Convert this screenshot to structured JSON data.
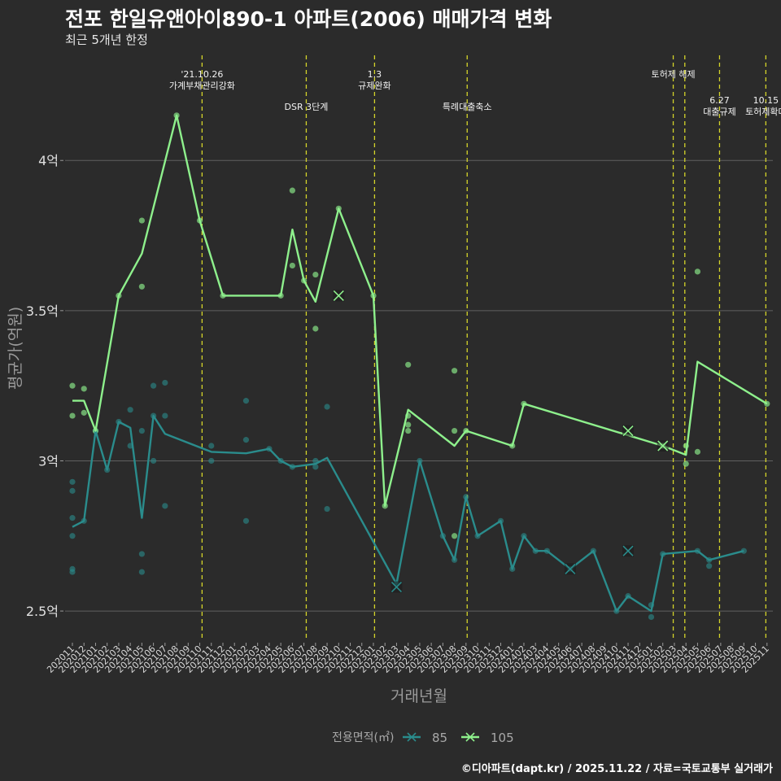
{
  "header": {
    "title": "전포 한일유앤아이890-1 아파트(2006) 매매가격 변화",
    "subtitle": "최근 5개년 한정"
  },
  "footer": {
    "credit": "©디아파트(dapt.kr) / 2025.11.22 / 자료=국토교통부 실거래가"
  },
  "colors": {
    "background": "#2b2b2b",
    "grid": "#606060",
    "series_85": "#2a8c8c",
    "series_105": "#8ef08c",
    "event_line": "#d4d42a"
  },
  "chart_data": {
    "type": "line",
    "title": "전포 한일유앤아이890-1 아파트(2006) 매매가격 변화",
    "xlabel": "거래년월",
    "ylabel": "평균가(억원)",
    "ylim": [
      2.4,
      4.35
    ],
    "yticks": [
      2.5,
      3.0,
      3.5,
      4.0
    ],
    "ytick_labels": [
      "2.5억",
      "3억",
      "3.5억",
      "4억"
    ],
    "grid": true,
    "legend": {
      "title": "전용면적(㎡)",
      "entries": [
        "85",
        "105"
      ],
      "position": "bottom"
    },
    "categories": [
      "202011",
      "202012",
      "202101",
      "202102",
      "202103",
      "202104",
      "202105",
      "202106",
      "202107",
      "202108",
      "202109",
      "202110",
      "202111",
      "202112",
      "202201",
      "202202",
      "202203",
      "202204",
      "202205",
      "202206",
      "202207",
      "202208",
      "202209",
      "202210",
      "202211",
      "202212",
      "202301",
      "202302",
      "202303",
      "202304",
      "202305",
      "202306",
      "202307",
      "202308",
      "202309",
      "202310",
      "202311",
      "202312",
      "202401",
      "202402",
      "202403",
      "202404",
      "202405",
      "202406",
      "202407",
      "202408",
      "202409",
      "202410",
      "202411",
      "202412",
      "202501",
      "202502",
      "202503",
      "202504",
      "202505",
      "202506",
      "202507",
      "202508",
      "202509",
      "202510",
      "202511"
    ],
    "series": [
      {
        "name": "85",
        "line": [
          [
            "202011",
            2.78
          ],
          [
            "202012",
            2.8
          ],
          [
            "202101",
            3.1
          ],
          [
            "202102",
            2.97
          ],
          [
            "202103",
            3.13
          ],
          [
            "202104",
            3.11
          ],
          [
            "202105",
            2.81
          ],
          [
            "202106",
            3.15
          ],
          [
            "202107",
            3.09
          ],
          [
            "202111",
            3.03
          ],
          [
            "202202",
            3.025
          ],
          [
            "202204",
            3.04
          ],
          [
            "202205",
            3.0
          ],
          [
            "202206",
            2.98
          ],
          [
            "202208",
            2.99
          ],
          [
            "202209",
            3.01
          ],
          [
            "202303",
            2.59
          ],
          [
            "202305",
            3.0
          ],
          [
            "202307",
            2.75
          ],
          [
            "202308",
            2.67
          ],
          [
            "202309",
            2.88
          ],
          [
            "202310",
            2.75
          ],
          [
            "202312",
            2.8
          ],
          [
            "202401",
            2.64
          ],
          [
            "202402",
            2.75
          ],
          [
            "202403",
            2.7
          ],
          [
            "202404",
            2.7
          ],
          [
            "202406",
            2.64
          ],
          [
            "202408",
            2.7
          ],
          [
            "202410",
            2.5
          ],
          [
            "202411",
            2.55
          ],
          [
            "202501",
            2.5
          ],
          [
            "202502",
            2.69
          ],
          [
            "202505",
            2.7
          ],
          [
            "202506",
            2.67
          ],
          [
            "202509",
            2.7
          ]
        ],
        "points": [
          [
            "202011",
            2.93
          ],
          [
            "202011",
            2.9
          ],
          [
            "202011",
            2.81
          ],
          [
            "202011",
            2.75
          ],
          [
            "202011",
            2.64
          ],
          [
            "202011",
            2.63
          ],
          [
            "202012",
            2.8
          ],
          [
            "202101",
            3.1
          ],
          [
            "202102",
            2.97
          ],
          [
            "202103",
            3.13
          ],
          [
            "202104",
            3.17
          ],
          [
            "202104",
            3.05
          ],
          [
            "202105",
            3.1
          ],
          [
            "202105",
            2.69
          ],
          [
            "202105",
            2.63
          ],
          [
            "202106",
            3.25
          ],
          [
            "202106",
            3.15
          ],
          [
            "202106",
            3.0
          ],
          [
            "202107",
            3.26
          ],
          [
            "202107",
            3.15
          ],
          [
            "202107",
            2.85
          ],
          [
            "202111",
            3.05
          ],
          [
            "202111",
            3.0
          ],
          [
            "202202",
            3.2
          ],
          [
            "202202",
            3.07
          ],
          [
            "202202",
            2.8
          ],
          [
            "202204",
            3.04
          ],
          [
            "202205",
            3.0
          ],
          [
            "202206",
            2.98
          ],
          [
            "202208",
            3.0
          ],
          [
            "202208",
            2.98
          ],
          [
            "202209",
            3.18
          ],
          [
            "202209",
            2.84
          ],
          [
            "202303",
            2.59
          ],
          [
            "202305",
            3.0
          ],
          [
            "202307",
            2.75
          ],
          [
            "202308",
            2.67
          ],
          [
            "202309",
            2.88
          ],
          [
            "202310",
            2.75
          ],
          [
            "202312",
            2.8
          ],
          [
            "202401",
            2.64
          ],
          [
            "202402",
            2.75
          ],
          [
            "202403",
            2.7
          ],
          [
            "202404",
            2.7
          ],
          [
            "202406",
            2.64
          ],
          [
            "202408",
            2.7
          ],
          [
            "202410",
            2.5
          ],
          [
            "202411",
            2.55
          ],
          [
            "202501",
            2.52
          ],
          [
            "202501",
            2.48
          ],
          [
            "202502",
            2.69
          ],
          [
            "202505",
            2.7
          ],
          [
            "202506",
            2.67
          ],
          [
            "202506",
            2.65
          ],
          [
            "202509",
            2.7
          ]
        ],
        "cancelled": [
          [
            "202303",
            2.58
          ],
          [
            "202406",
            2.64
          ],
          [
            "202411",
            2.7
          ]
        ]
      },
      {
        "name": "105",
        "line": [
          [
            "202011",
            3.2
          ],
          [
            "202012",
            3.2
          ],
          [
            "202101",
            3.1
          ],
          [
            "202103",
            3.55
          ],
          [
            "202105",
            3.69
          ],
          [
            "202108",
            4.15
          ],
          [
            "202110",
            3.8
          ],
          [
            "202112",
            3.55
          ],
          [
            "202205",
            3.55
          ],
          [
            "202206",
            3.77
          ],
          [
            "202207",
            3.6
          ],
          [
            "202208",
            3.53
          ],
          [
            "202210",
            3.84
          ],
          [
            "202301",
            3.55
          ],
          [
            "202302",
            2.85
          ],
          [
            "202304",
            3.17
          ],
          [
            "202308",
            3.05
          ],
          [
            "202309",
            3.1
          ],
          [
            "202401",
            3.05
          ],
          [
            "202402",
            3.19
          ],
          [
            "202502",
            3.05
          ],
          [
            "202504",
            3.02
          ],
          [
            "202505",
            3.33
          ],
          [
            "202511",
            3.19
          ]
        ],
        "points": [
          [
            "202011",
            3.25
          ],
          [
            "202011",
            3.15
          ],
          [
            "202012",
            3.24
          ],
          [
            "202012",
            3.16
          ],
          [
            "202101",
            3.1
          ],
          [
            "202103",
            3.55
          ],
          [
            "202105",
            3.8
          ],
          [
            "202105",
            3.58
          ],
          [
            "202108",
            4.15
          ],
          [
            "202110",
            3.8
          ],
          [
            "202112",
            3.55
          ],
          [
            "202205",
            3.55
          ],
          [
            "202206",
            3.9
          ],
          [
            "202206",
            3.65
          ],
          [
            "202207",
            3.6
          ],
          [
            "202208",
            3.62
          ],
          [
            "202208",
            3.44
          ],
          [
            "202210",
            3.84
          ],
          [
            "202301",
            3.55
          ],
          [
            "202302",
            2.85
          ],
          [
            "202304",
            3.32
          ],
          [
            "202304",
            3.15
          ],
          [
            "202304",
            3.12
          ],
          [
            "202304",
            3.1
          ],
          [
            "202308",
            3.3
          ],
          [
            "202308",
            3.1
          ],
          [
            "202308",
            2.75
          ],
          [
            "202309",
            3.1
          ],
          [
            "202401",
            3.05
          ],
          [
            "202402",
            3.19
          ],
          [
            "202502",
            3.05
          ],
          [
            "202504",
            3.05
          ],
          [
            "202504",
            2.99
          ],
          [
            "202505",
            3.63
          ],
          [
            "202505",
            3.03
          ],
          [
            "202511",
            3.19
          ]
        ],
        "cancelled": [
          [
            "202210",
            3.55
          ],
          [
            "202411",
            3.1
          ],
          [
            "202502",
            3.05
          ]
        ]
      }
    ],
    "events": [
      {
        "x": 11.2,
        "row": 1,
        "lines": [
          "'21.10.26",
          "가계부채관리강화"
        ]
      },
      {
        "x": 20.2,
        "row": 2,
        "lines": [
          "DSR 3단계"
        ]
      },
      {
        "x": 26.1,
        "row": 1,
        "lines": [
          "1.3",
          "규제완화"
        ]
      },
      {
        "x": 34.1,
        "row": 2,
        "lines": [
          "특례대출축소"
        ]
      },
      {
        "x": 51.9,
        "row": 1,
        "lines": [
          "토허제 해제"
        ]
      },
      {
        "x": 52.9,
        "row": 0,
        "lines": []
      },
      {
        "x": 55.9,
        "row": 3,
        "lines": [
          "6.27",
          "대출규제"
        ]
      },
      {
        "x": 59.9,
        "row": 3,
        "lines": [
          "10.15",
          "토허제확대"
        ]
      }
    ]
  }
}
